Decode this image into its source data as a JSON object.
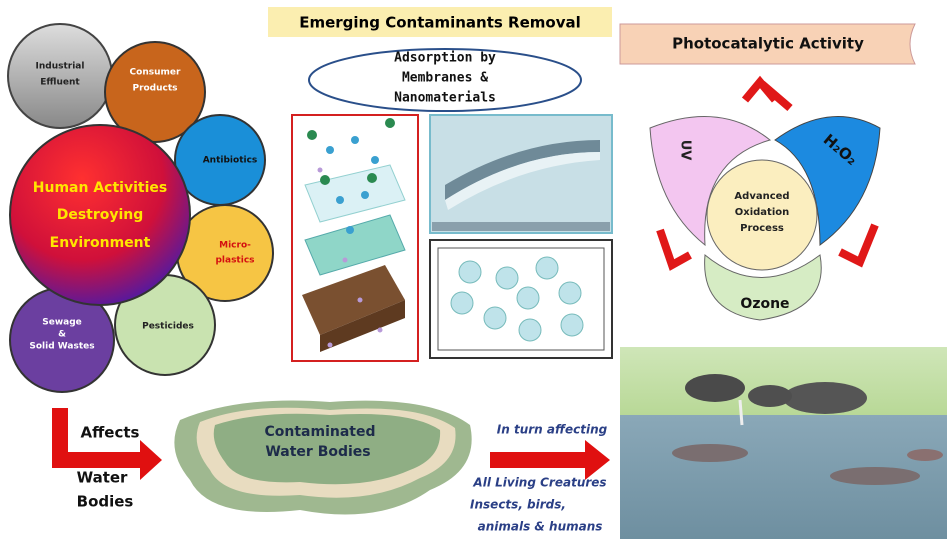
{
  "header": {
    "title": "Emerging Contaminants Removal"
  },
  "sources": {
    "center": [
      "Human Activities",
      "Destroying",
      "Environment"
    ],
    "items": [
      [
        "Industrial",
        "Effluent"
      ],
      [
        "Consumer",
        "Products"
      ],
      [
        "Antibiotics"
      ],
      [
        "Micro-",
        "plastics"
      ],
      [
        "Pesticides"
      ],
      [
        "Sewage",
        "&",
        "Solid Wastes"
      ]
    ]
  },
  "adsorption": {
    "label": [
      "Adsorption by",
      "Membranes &",
      "Nanomaterials"
    ]
  },
  "photocatalysis": {
    "title": "Photocatalytic Activity",
    "nodes": [
      "UV",
      "H₂O₂",
      "Ozone"
    ],
    "center": [
      "Advanced",
      "Oxidation",
      "Process"
    ]
  },
  "impact": {
    "affects": "Affects",
    "target": [
      "Water",
      "Bodies"
    ],
    "water": [
      "Contaminated",
      "Water Bodies"
    ],
    "link": "In turn affecting",
    "receivers": [
      "All Living Creatures",
      "Insects, birds,",
      "animals & humans"
    ]
  }
}
